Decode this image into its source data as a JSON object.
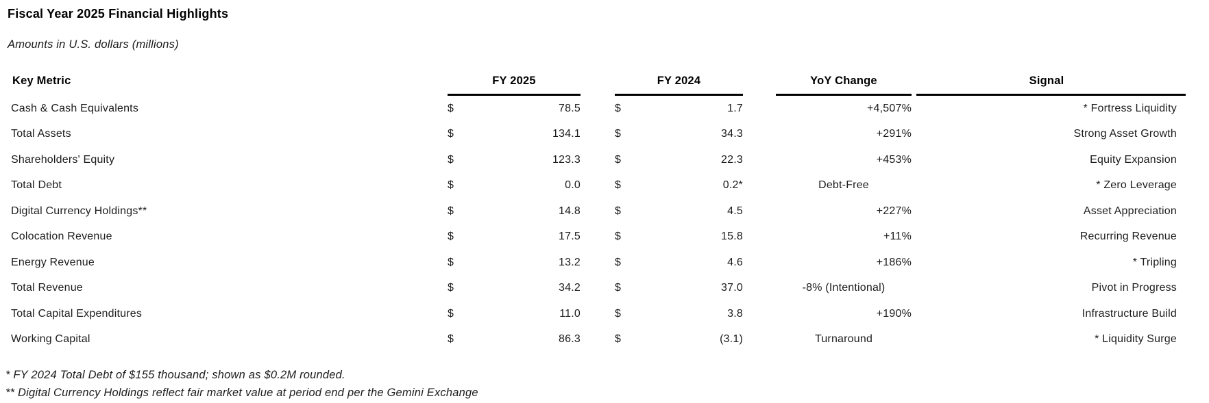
{
  "title": "Fiscal Year 2025 Financial Highlights",
  "subtitle": "Amounts in U.S. dollars (millions)",
  "table": {
    "currency_symbol": "$",
    "headers": {
      "metric": "Key Metric",
      "fy2025": "FY 2025",
      "fy2024": "FY 2024",
      "yoy": "YoY Change",
      "signal": "Signal"
    },
    "rows": [
      {
        "metric": "Cash & Cash Equivalents",
        "fy2025": "78.5",
        "fy2024": "1.7",
        "yoy": "+4,507%",
        "yoy_align": "right",
        "signal": "* Fortress Liquidity"
      },
      {
        "metric": "Total Assets",
        "fy2025": "134.1",
        "fy2024": "34.3",
        "yoy": "+291%",
        "yoy_align": "right",
        "signal": "Strong Asset Growth"
      },
      {
        "metric": "Shareholders' Equity",
        "fy2025": "123.3",
        "fy2024": "22.3",
        "yoy": "+453%",
        "yoy_align": "right",
        "signal": "Equity Expansion"
      },
      {
        "metric": "Total Debt",
        "fy2025": "0.0",
        "fy2024": "0.2*",
        "yoy": "Debt-Free",
        "yoy_align": "center",
        "signal": "* Zero Leverage"
      },
      {
        "metric": "Digital Currency Holdings**",
        "fy2025": "14.8",
        "fy2024": "4.5",
        "yoy": "+227%",
        "yoy_align": "right",
        "signal": "Asset Appreciation"
      },
      {
        "metric": "Colocation Revenue",
        "fy2025": "17.5",
        "fy2024": "15.8",
        "yoy": "+11%",
        "yoy_align": "right",
        "signal": "Recurring Revenue"
      },
      {
        "metric": "Energy Revenue",
        "fy2025": "13.2",
        "fy2024": "4.6",
        "yoy": "+186%",
        "yoy_align": "right",
        "signal": "* Tripling"
      },
      {
        "metric": "Total Revenue",
        "fy2025": "34.2",
        "fy2024": "37.0",
        "yoy": "-8% (Intentional)",
        "yoy_align": "center",
        "signal": "Pivot in Progress"
      },
      {
        "metric": "Total Capital Expenditures",
        "fy2025": "11.0",
        "fy2024": "3.8",
        "yoy": "+190%",
        "yoy_align": "right",
        "signal": "Infrastructure Build"
      },
      {
        "metric": "Working Capital",
        "fy2025": "86.3",
        "fy2024": "(3.1)",
        "yoy": "Turnaround",
        "yoy_align": "center",
        "signal": "* Liquidity Surge"
      }
    ]
  },
  "footnotes": [
    "* FY 2024 Total Debt of $155 thousand; shown as $0.2M rounded.",
    "** Digital Currency Holdings reflect fair market value at period end per the Gemini Exchange"
  ],
  "colors": {
    "background": "#ffffff",
    "text": "#1c1c1c",
    "heading": "#000000",
    "rule": "#000000"
  }
}
